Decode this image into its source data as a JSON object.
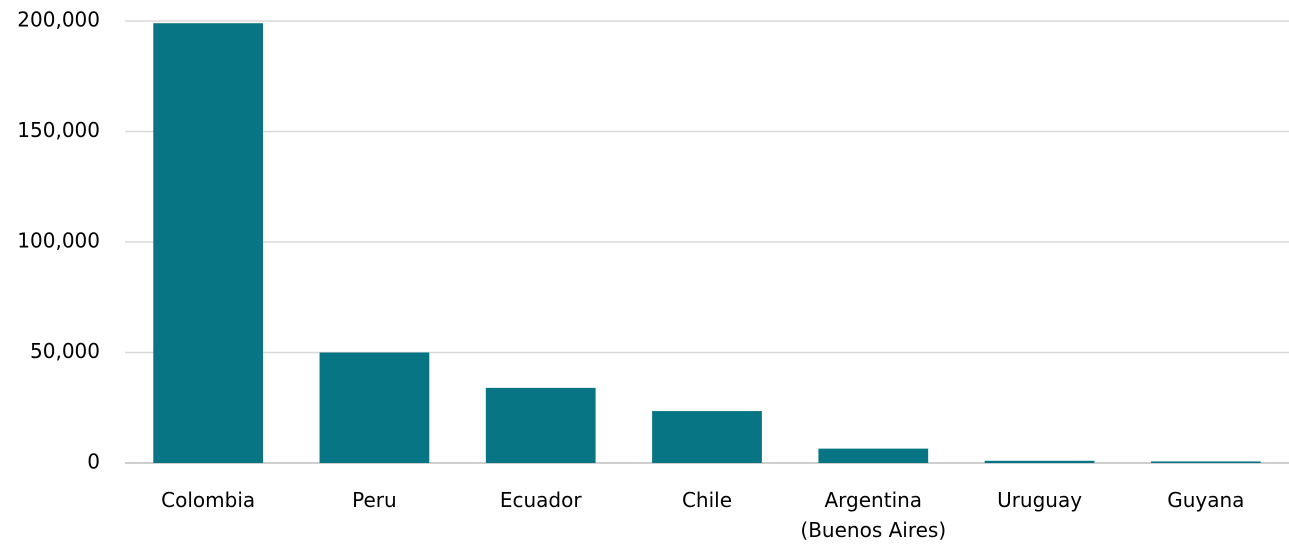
{
  "chart_data": {
    "type": "bar",
    "categories": [
      "Colombia",
      "Peru",
      "Ecuador",
      "Chile",
      "Argentina (Buenos Aires)",
      "Uruguay",
      "Guyana"
    ],
    "values": [
      199000,
      50000,
      34000,
      23500,
      6500,
      1000,
      700
    ],
    "color": "#077583",
    "ylim": [
      0,
      200000
    ],
    "yticks": [
      0,
      {
        "value": 50000,
        "label": "50,000"
      },
      {
        "value": 100000,
        "label": "100,000"
      },
      {
        "value": 150000,
        "label": "150,000"
      },
      {
        "value": 200000,
        "label": "200,000"
      }
    ],
    "grid": true
  }
}
